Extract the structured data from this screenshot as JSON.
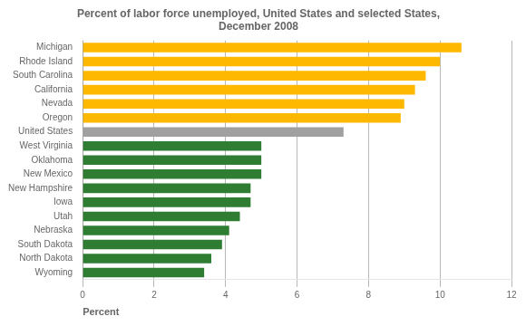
{
  "chart_data": {
    "type": "bar",
    "orientation": "horizontal",
    "title": "Percent of labor force unemployed, United States and selected States,\nDecember 2008",
    "xlabel": "Percent",
    "categories": [
      "Michigan",
      "Rhode Island",
      "South Carolina",
      "California",
      "Nevada",
      "Oregon",
      "United States",
      "West Virginia",
      "Oklahoma",
      "New Mexico",
      "New Hampshire",
      "Iowa",
      "Utah",
      "Nebraska",
      "South Dakota",
      "North Dakota",
      "Wyoming"
    ],
    "values": [
      10.6,
      10.0,
      9.6,
      9.3,
      9.0,
      8.9,
      7.3,
      5.0,
      5.0,
      5.0,
      4.7,
      4.7,
      4.4,
      4.1,
      3.9,
      3.6,
      3.4
    ],
    "colors": [
      "#FFB800",
      "#FFB800",
      "#FFB800",
      "#FFB800",
      "#FFB800",
      "#FFB800",
      "#A0A0A0",
      "#2E7D32",
      "#2E7D32",
      "#2E7D32",
      "#2E7D32",
      "#2E7D32",
      "#2E7D32",
      "#2E7D32",
      "#2E7D32",
      "#2E7D32",
      "#2E7D32"
    ],
    "xlim": [
      0,
      12
    ],
    "xticks": [
      0,
      2,
      4,
      6,
      8,
      10,
      12
    ],
    "grid": true
  }
}
